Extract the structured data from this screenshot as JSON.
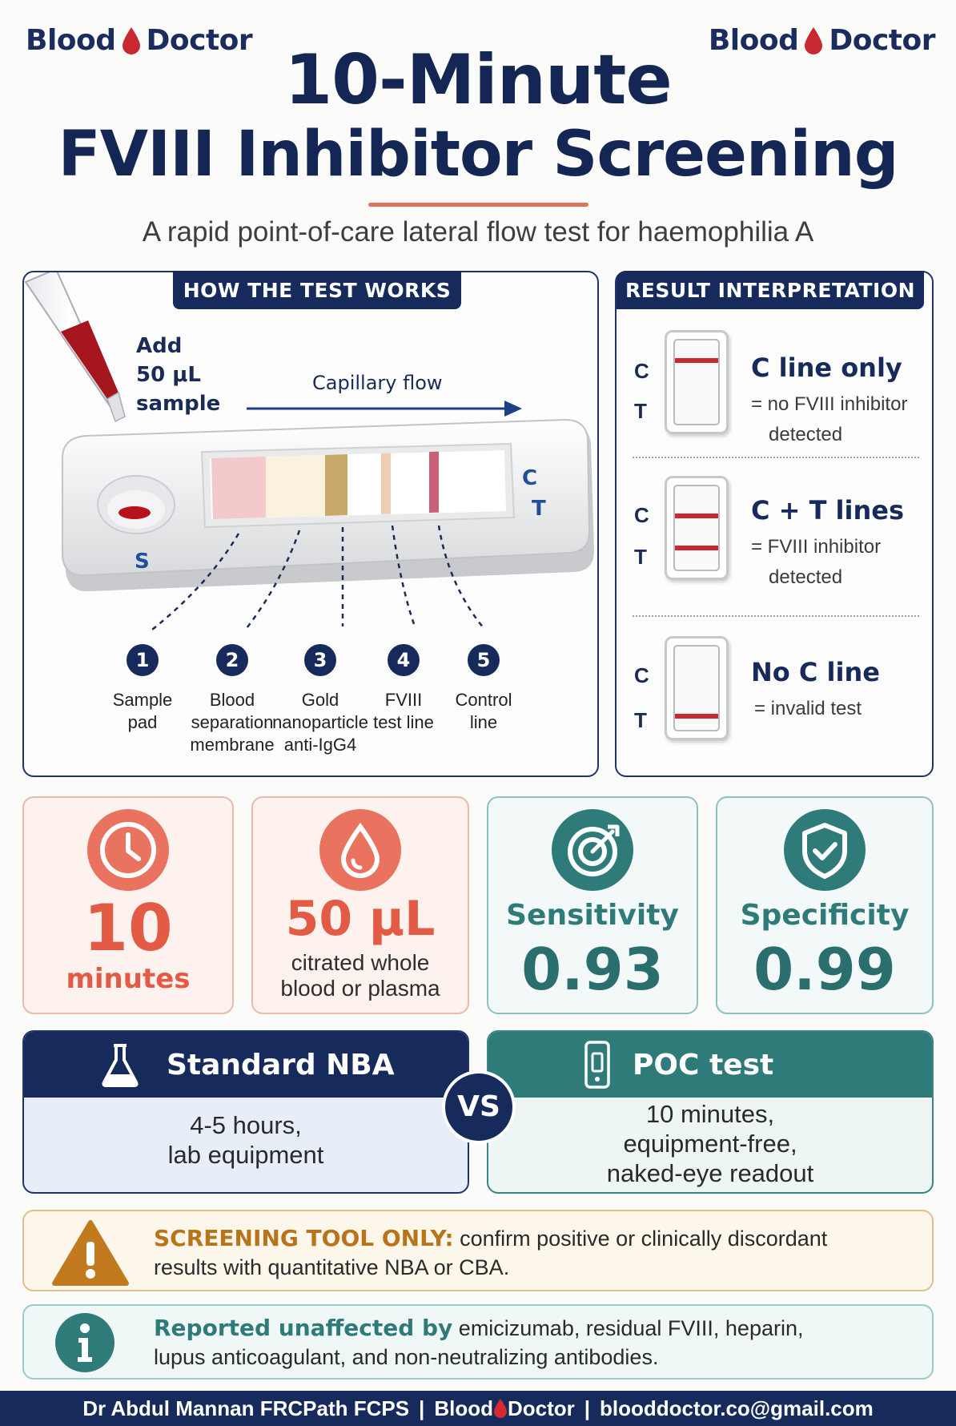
{
  "brand": {
    "left_word": "Blood",
    "right_word": "Doctor"
  },
  "title": {
    "line1": "10-Minute",
    "line2": "FVIII Inhibitor Screening"
  },
  "subtitle": "A rapid point-of-care lateral flow test for haemophilia A",
  "how": {
    "heading": "HOW THE TEST WORKS",
    "add_sample": [
      "Add",
      "50 μL",
      "sample"
    ],
    "capillary_flow": "Capillary flow",
    "cassette_c": "C",
    "cassette_t": "T",
    "sample_port": "S",
    "steps": [
      {
        "num": "1",
        "label": "Sample pad"
      },
      {
        "num": "2",
        "label": "Blood separation membrane"
      },
      {
        "num": "3",
        "label": "Gold nanoparticle anti-IgG4"
      },
      {
        "num": "4",
        "label": "FVIII test line"
      },
      {
        "num": "5",
        "label": "Control line"
      }
    ],
    "step_label_lines": [
      [
        "Sample",
        "pad"
      ],
      [
        "Blood",
        "separation",
        "membrane"
      ],
      [
        "Gold",
        "nanoparticle",
        "anti-IgG4"
      ],
      [
        "FVIII",
        "test line"
      ],
      [
        "Control",
        "line"
      ]
    ]
  },
  "results": {
    "heading": "RESULT  INTERPRETATION",
    "c_label": "C",
    "t_label": "T",
    "rows": [
      {
        "title": "C line only",
        "desc": [
          "= no FVIII inhibitor",
          "detected"
        ],
        "c_line": true,
        "t_line": false
      },
      {
        "title": "C + T lines",
        "desc": [
          "= FVIII inhibitor",
          "detected"
        ],
        "c_line": true,
        "t_line": true
      },
      {
        "title": "No C line",
        "desc": [
          "= invalid test"
        ],
        "c_line": false,
        "t_line": true
      }
    ]
  },
  "stats": {
    "time": {
      "value": "10",
      "unit": "minutes",
      "icon": "clock-icon"
    },
    "volume": {
      "value": "50 μL",
      "line1": "citrated whole",
      "line2": "blood or plasma",
      "icon": "blood-drop-icon"
    },
    "sensitivity": {
      "label": "Sensitivity",
      "value": "0.93",
      "icon": "target-icon"
    },
    "specificity": {
      "label": "Specificity",
      "value": "0.99",
      "icon": "shield-check-icon"
    }
  },
  "compare": {
    "left": {
      "title": "Standard NBA",
      "lines": [
        "4-5 hours,",
        "lab equipment"
      ],
      "icon": "flask-icon"
    },
    "vs": "VS",
    "right": {
      "title": "POC test",
      "lines": [
        "10 minutes,",
        "equipment-free,",
        "naked-eye readout"
      ],
      "icon": "test-cassette-icon"
    }
  },
  "notes": {
    "warning": {
      "lead": "SCREENING TOOL ONLY:",
      "line1": " confirm positive or clinically discordant",
      "line2": "results with quantitative NBA or CBA.",
      "icon": "warning-icon"
    },
    "info": {
      "lead": "Reported unaffected by",
      "line1": " emicizumab, residual FVIII, heparin,",
      "line2": "lupus anticoagulant, and non-neutralizing antibodies.",
      "icon": "info-icon"
    }
  },
  "footer": {
    "author": "Dr Abdul Mannan FRCPath FCPS",
    "sep": "|",
    "brand_left": "Blood",
    "brand_right": "Doctor",
    "email": "blooddoctor.co@gmail.com"
  },
  "colors": {
    "navy": "#172a5c",
    "coral": "#e35a45",
    "teal": "#2f7b7a",
    "blood_red": "#c8282f",
    "amber": "#b8741a"
  }
}
